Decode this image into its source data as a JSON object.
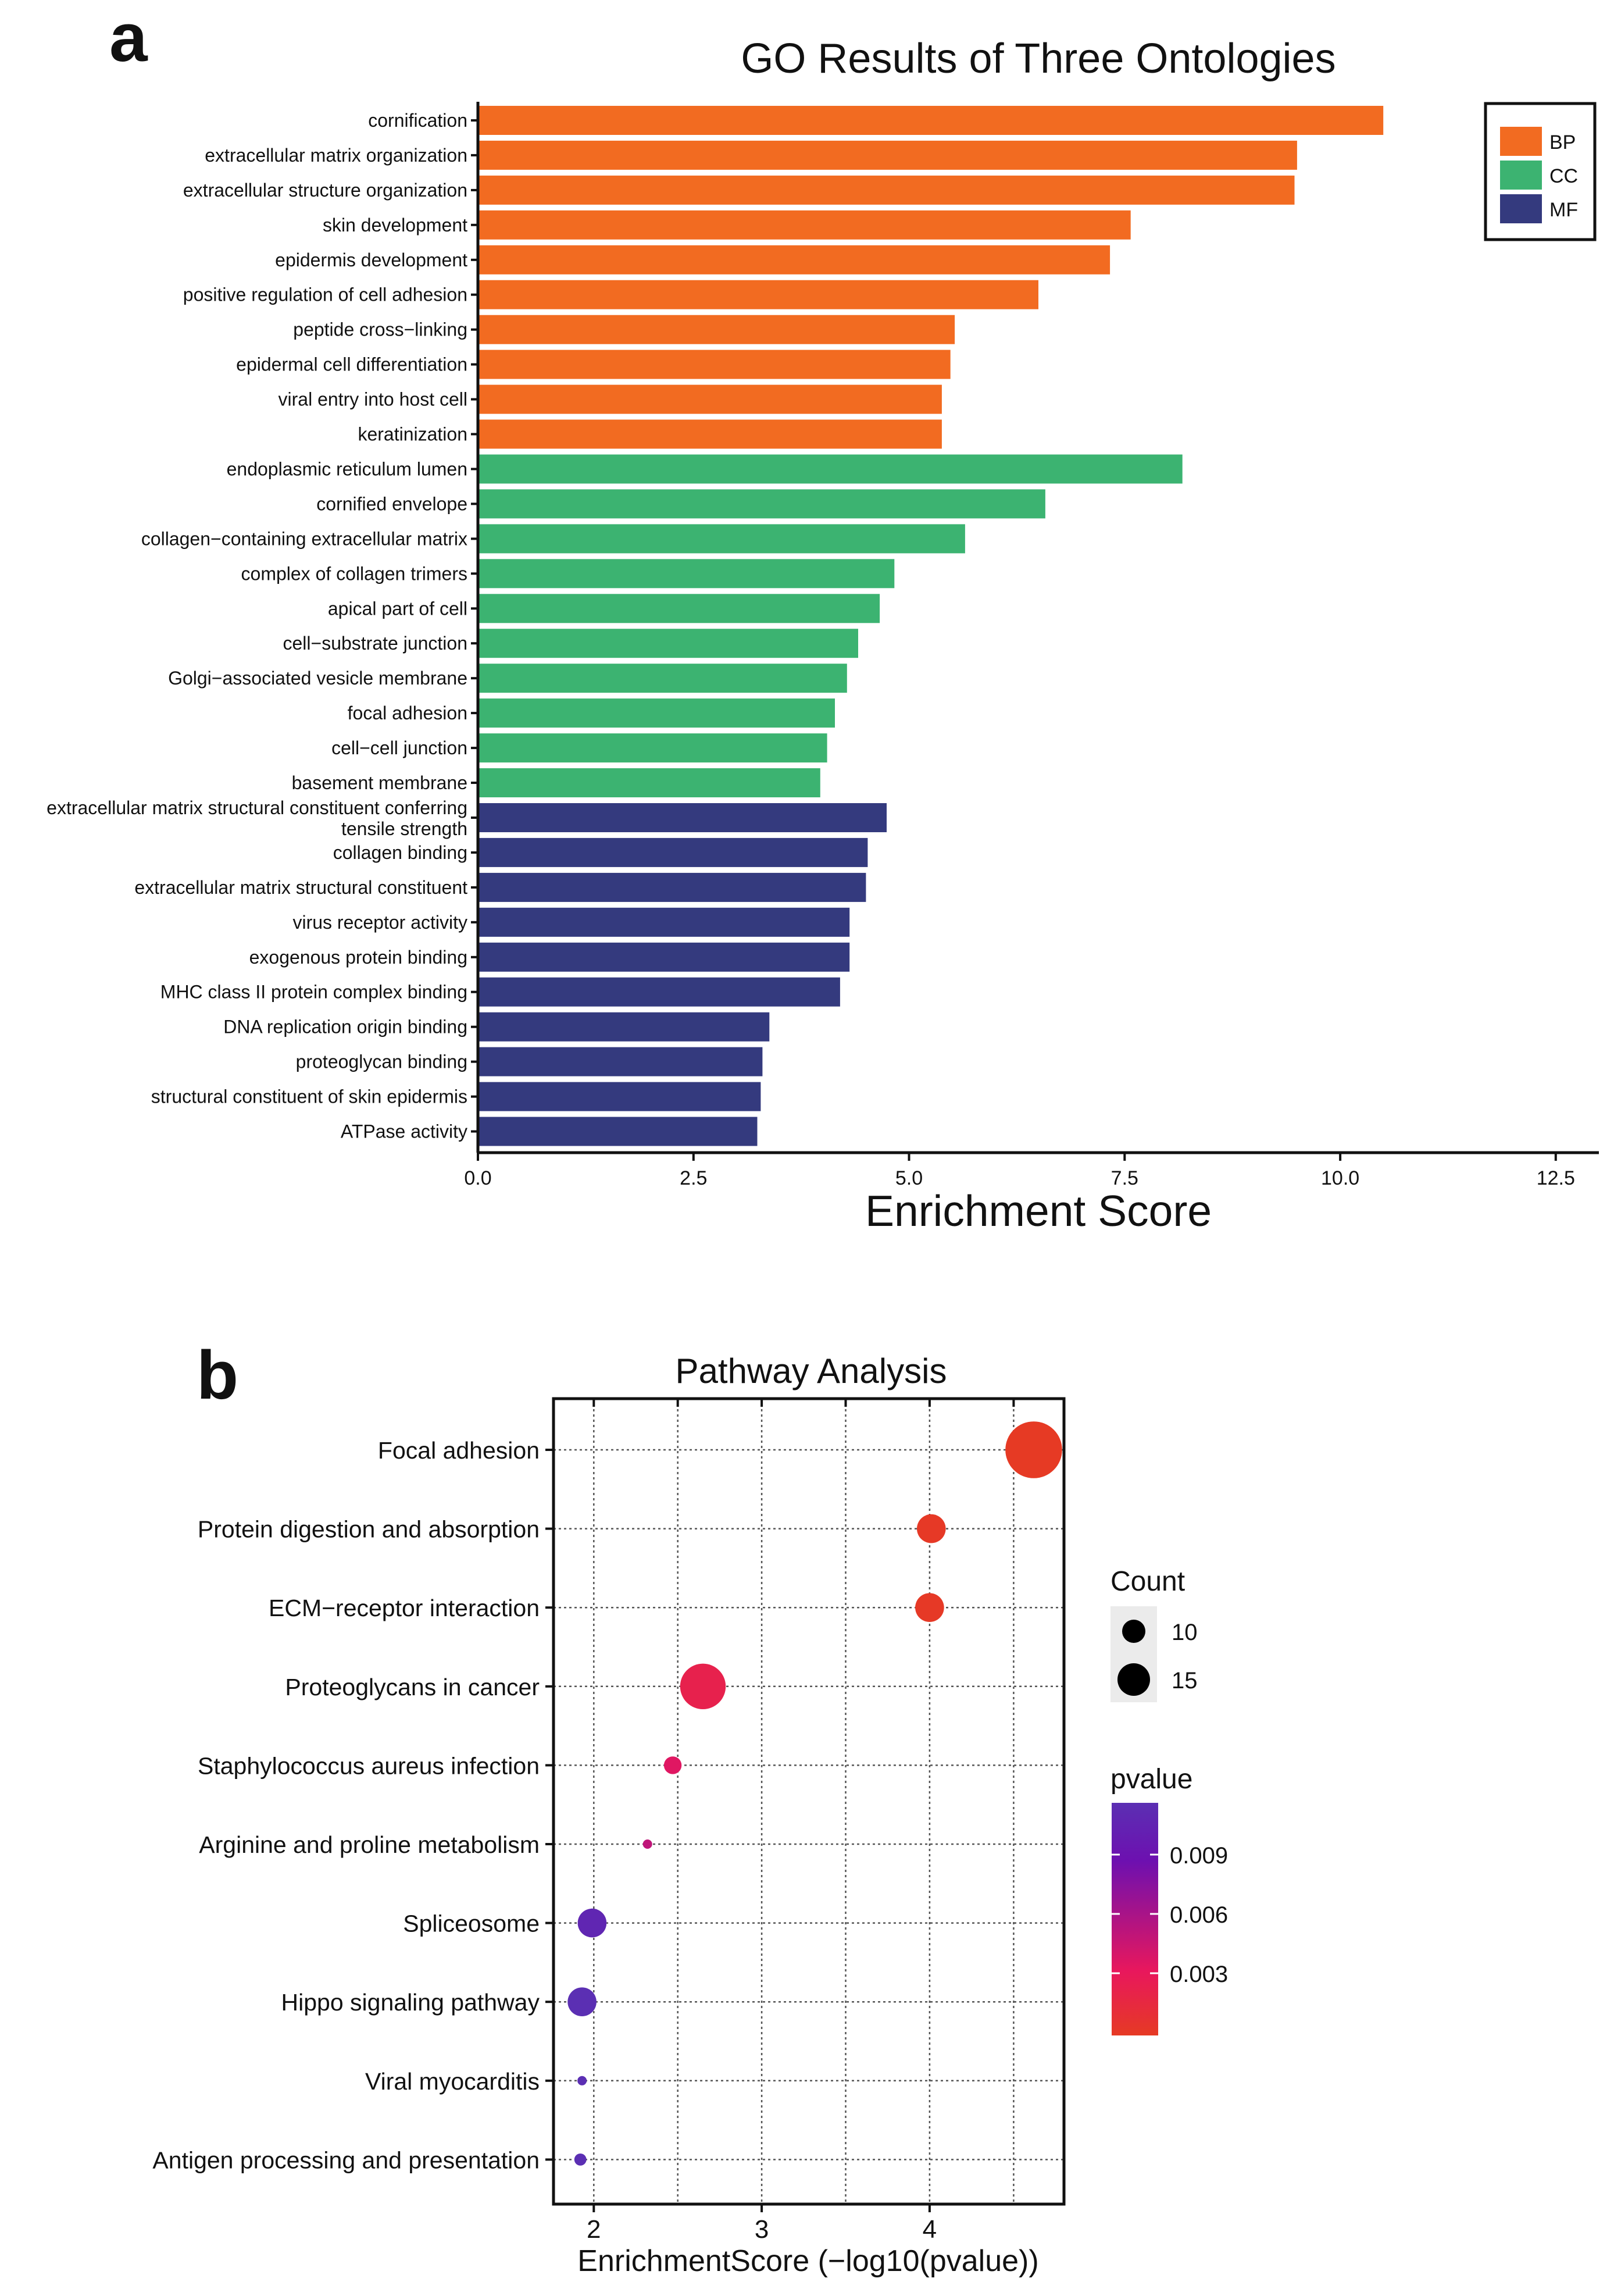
{
  "panel_a_letter": "a",
  "panel_b_letter": "b",
  "chart_data": [
    {
      "type": "bar",
      "orientation": "horizontal",
      "title": "GO Results of Three Ontologies",
      "xlabel": "Enrichment Score",
      "ylabel": "",
      "xlim": [
        0,
        13
      ],
      "xticks": [
        0.0,
        2.5,
        5.0,
        7.5,
        10.0,
        12.5
      ],
      "xtick_labels": [
        "0.0",
        "2.5",
        "5.0",
        "7.5",
        "10.0",
        "12.5"
      ],
      "legend": {
        "position": "top-right",
        "entries": [
          {
            "name": "BP",
            "color": "#f26b21"
          },
          {
            "name": "CC",
            "color": "#3cb371"
          },
          {
            "name": "MF",
            "color": "#343a7e"
          }
        ]
      },
      "categories": [
        {
          "label": "cornification",
          "value": 10.5,
          "group": "BP"
        },
        {
          "label": "extracellular matrix organization",
          "value": 9.5,
          "group": "BP"
        },
        {
          "label": "extracellular structure organization",
          "value": 9.47,
          "group": "BP"
        },
        {
          "label": "skin development",
          "value": 7.57,
          "group": "BP"
        },
        {
          "label": "epidermis development",
          "value": 7.33,
          "group": "BP"
        },
        {
          "label": "positive regulation of cell adhesion",
          "value": 6.5,
          "group": "BP"
        },
        {
          "label": "peptide cross−linking",
          "value": 5.53,
          "group": "BP"
        },
        {
          "label": "epidermal cell differentiation",
          "value": 5.48,
          "group": "BP"
        },
        {
          "label": "viral entry into host cell",
          "value": 5.38,
          "group": "BP"
        },
        {
          "label": "keratinization",
          "value": 5.38,
          "group": "BP"
        },
        {
          "label": "endoplasmic reticulum lumen",
          "value": 8.17,
          "group": "CC"
        },
        {
          "label": "cornified envelope",
          "value": 6.58,
          "group": "CC"
        },
        {
          "label": "collagen−containing extracellular matrix",
          "value": 5.65,
          "group": "CC"
        },
        {
          "label": "complex of collagen trimers",
          "value": 4.83,
          "group": "CC"
        },
        {
          "label": "apical part of cell",
          "value": 4.66,
          "group": "CC"
        },
        {
          "label": "cell−substrate junction",
          "value": 4.41,
          "group": "CC"
        },
        {
          "label": "Golgi−associated vesicle membrane",
          "value": 4.28,
          "group": "CC"
        },
        {
          "label": "focal adhesion",
          "value": 4.14,
          "group": "CC"
        },
        {
          "label": "cell−cell junction",
          "value": 4.05,
          "group": "CC"
        },
        {
          "label": "basement membrane",
          "value": 3.97,
          "group": "CC"
        },
        {
          "label": "extracellular matrix structural constituent conferring\ntensile strength",
          "value": 4.74,
          "group": "MF"
        },
        {
          "label": "collagen binding",
          "value": 4.52,
          "group": "MF"
        },
        {
          "label": "extracellular matrix structural constituent",
          "value": 4.5,
          "group": "MF"
        },
        {
          "label": "virus receptor activity",
          "value": 4.31,
          "group": "MF"
        },
        {
          "label": "exogenous protein binding",
          "value": 4.31,
          "group": "MF"
        },
        {
          "label": "MHC class II protein complex binding",
          "value": 4.2,
          "group": "MF"
        },
        {
          "label": "DNA replication origin binding",
          "value": 3.38,
          "group": "MF"
        },
        {
          "label": "proteoglycan binding",
          "value": 3.3,
          "group": "MF"
        },
        {
          "label": "structural constituent of skin epidermis",
          "value": 3.28,
          "group": "MF"
        },
        {
          "label": "ATPase activity",
          "value": 3.24,
          "group": "MF"
        }
      ]
    },
    {
      "type": "scatter",
      "title": "Pathway Analysis",
      "xlabel": "EnrichmentScore (−log10(pvalue))",
      "ylabel": "",
      "xlim": [
        1.76,
        4.8
      ],
      "xticks": [
        2,
        3,
        4
      ],
      "xtick_labels": [
        "2",
        "3",
        "4"
      ],
      "grid": true,
      "size_legend": {
        "title": "Count",
        "entries": [
          {
            "label": "10",
            "value": 10
          },
          {
            "label": "15",
            "value": 15
          }
        ]
      },
      "color_legend": {
        "title": "pvalue",
        "range": [
          0.0,
          0.011
        ],
        "ticks": [
          0.003,
          0.006,
          0.009
        ],
        "tick_labels": [
          "0.003",
          "0.006",
          "0.009"
        ],
        "colors": [
          "#e63a24",
          "#e8175d",
          "#6d10b0",
          "#5b2fb3"
        ]
      },
      "points": [
        {
          "label": "Focal adhesion",
          "x": 4.62,
          "count": 16,
          "pvalue": 2e-05
        },
        {
          "label": "Protein digestion and absorption",
          "x": 4.01,
          "count": 11,
          "pvalue": 0.0001
        },
        {
          "label": "ECM−receptor interaction",
          "x": 4.0,
          "count": 11,
          "pvalue": 0.0001
        },
        {
          "label": "Proteoglycans in cancer",
          "x": 2.65,
          "count": 14,
          "pvalue": 0.0022
        },
        {
          "label": "Staphylococcus aureus infection",
          "x": 2.47,
          "count": 9,
          "pvalue": 0.0034
        },
        {
          "label": "Arginine and proline metabolism",
          "x": 2.32,
          "count": 5,
          "pvalue": 0.0048
        },
        {
          "label": "Spliceosome",
          "x": 1.99,
          "count": 11,
          "pvalue": 0.0102
        },
        {
          "label": "Hippo signaling pathway",
          "x": 1.93,
          "count": 11,
          "pvalue": 0.0117
        },
        {
          "label": "Viral myocarditis",
          "x": 1.93,
          "count": 5,
          "pvalue": 0.0117
        },
        {
          "label": "Antigen processing and presentation",
          "x": 1.92,
          "count": 8,
          "pvalue": 0.012
        }
      ]
    }
  ]
}
